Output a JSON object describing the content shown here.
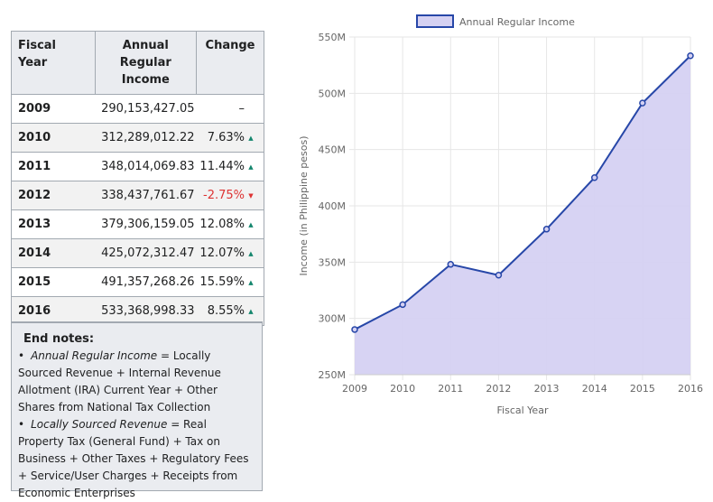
{
  "table": {
    "headers": {
      "year": "Fiscal Year",
      "income": "Annual Regular Income",
      "change": "Change"
    },
    "rows": [
      {
        "year": "2009",
        "income": "290,153,427.05",
        "change": "–",
        "direction": "none"
      },
      {
        "year": "2010",
        "income": "312,289,012.22",
        "change": "7.63%",
        "direction": "up"
      },
      {
        "year": "2011",
        "income": "348,014,069.83",
        "change": "11.44%",
        "direction": "up"
      },
      {
        "year": "2012",
        "income": "338,437,761.67",
        "change": "-2.75%",
        "direction": "down"
      },
      {
        "year": "2013",
        "income": "379,306,159.05",
        "change": "12.08%",
        "direction": "up"
      },
      {
        "year": "2014",
        "income": "425,072,312.47",
        "change": "12.07%",
        "direction": "up"
      },
      {
        "year": "2015",
        "income": "491,357,268.26",
        "change": "15.59%",
        "direction": "up"
      },
      {
        "year": "2016",
        "income": "533,368,998.33",
        "change": "8.55%",
        "direction": "up"
      }
    ]
  },
  "end_notes": {
    "title": "End notes:",
    "notes": [
      {
        "term": "Annual Regular Income",
        "definition": "= Locally Sourced Revenue + Internal Revenue Allotment (IRA) Current Year + Other Shares from National Tax Collection"
      },
      {
        "term": "Locally Sourced Revenue",
        "definition": "= Real Property Tax (General Fund) + Tax on Business + Other Taxes + Regulatory Fees + Service/User Charges + Receipts from Economic Enterprises"
      }
    ]
  },
  "chart_data": {
    "type": "area",
    "title": "",
    "legend": "Annual Regular Income",
    "legend_position": "top",
    "xlabel": "Fiscal Year",
    "ylabel": "Income (in Philippine pesos)",
    "categories": [
      "2009",
      "2010",
      "2011",
      "2012",
      "2013",
      "2014",
      "2015",
      "2016"
    ],
    "series": [
      {
        "name": "Annual Regular Income",
        "values": [
          290153427.05,
          312289012.22,
          348014069.83,
          338437761.67,
          379306159.05,
          425072312.47,
          491357268.26,
          533368998.33
        ]
      }
    ],
    "ylim": [
      250000000,
      550000000
    ],
    "yticks": [
      250000000,
      300000000,
      350000000,
      400000000,
      450000000,
      500000000,
      550000000
    ],
    "ytick_labels": [
      "250M",
      "300M",
      "350M",
      "400M",
      "450M",
      "500M",
      "550M"
    ],
    "grid": true,
    "colors": {
      "line": "#2747a8",
      "fill": "#d5d1f2",
      "legend_border": "#2747a8",
      "grid": "#e6e6e6"
    }
  }
}
